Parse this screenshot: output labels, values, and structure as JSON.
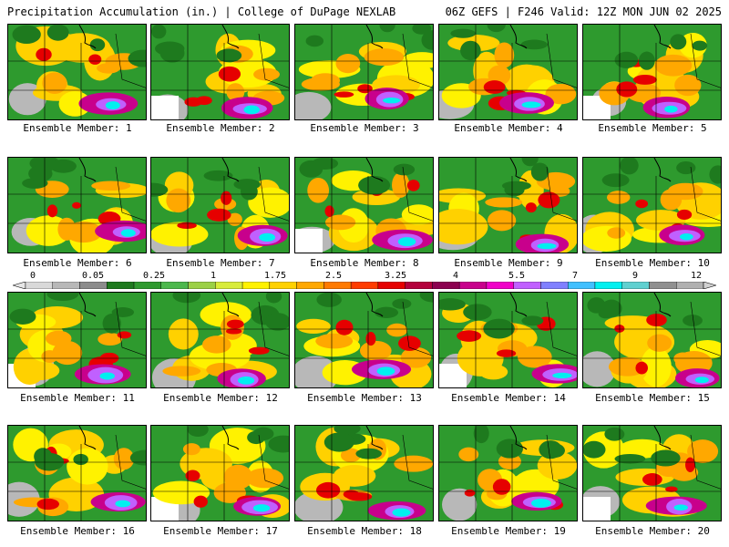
{
  "header": {
    "title_left": "Precipitation Accumulation (in.) | College of DuPage NEXLAB",
    "title_right": "06Z GEFS | F246 Valid: 12Z MON JUN 02 2025"
  },
  "colorbar": {
    "labels": [
      "0",
      "0.05",
      "0.25",
      "1",
      "1.75",
      "2.5",
      "3.25",
      "4",
      "5.5",
      "7",
      "9",
      "12"
    ],
    "colors": [
      "#d9d9d9",
      "#b8b8b8",
      "#8c8c8c",
      "#1e7a1e",
      "#2e9a2e",
      "#4cb84c",
      "#9bd046",
      "#d8ec3a",
      "#fff200",
      "#ffd100",
      "#ffa800",
      "#ff7a00",
      "#ff3c00",
      "#e60000",
      "#b4003c",
      "#8c0050",
      "#c8008c",
      "#f000c8",
      "#c060ff",
      "#8080ff",
      "#40c0ff",
      "#00f0f0",
      "#60d0d0",
      "#909090",
      "#b0b0b0"
    ]
  },
  "members": [
    {
      "label": "Ensemble Member: 1"
    },
    {
      "label": "Ensemble Member: 2"
    },
    {
      "label": "Ensemble Member: 3"
    },
    {
      "label": "Ensemble Member: 4"
    },
    {
      "label": "Ensemble Member: 5"
    },
    {
      "label": "Ensemble Member: 6"
    },
    {
      "label": "Ensemble Member: 7"
    },
    {
      "label": "Ensemble Member: 8"
    },
    {
      "label": "Ensemble Member: 9"
    },
    {
      "label": "Ensemble Member: 10"
    },
    {
      "label": "Ensemble Member: 11"
    },
    {
      "label": "Ensemble Member: 12"
    },
    {
      "label": "Ensemble Member: 13"
    },
    {
      "label": "Ensemble Member: 14"
    },
    {
      "label": "Ensemble Member: 15"
    },
    {
      "label": "Ensemble Member: 16"
    },
    {
      "label": "Ensemble Member: 17"
    },
    {
      "label": "Ensemble Member: 18"
    },
    {
      "label": "Ensemble Member: 19"
    },
    {
      "label": "Ensemble Member: 20"
    }
  ]
}
